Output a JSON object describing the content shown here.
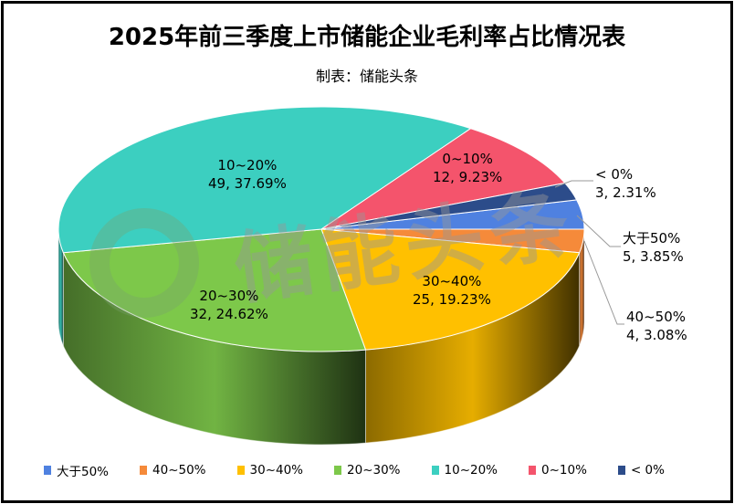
{
  "title": "2025年前三季度上市储能企业毛利率占比情况表",
  "subtitle": "制表：储能头条",
  "watermark": "储能头条",
  "chart_data": {
    "type": "pie",
    "title": "2025年前三季度上市储能企业毛利率占比情况表",
    "subtitle": "制表：储能头条",
    "legend_position": "bottom",
    "slices": [
      {
        "name": "大于50%",
        "value": 5,
        "percent": "3.85%",
        "label": "5, 3.85%",
        "color": "#4F81E0"
      },
      {
        "name": "40~50%",
        "value": 4,
        "percent": "3.08%",
        "label": "4, 3.08%",
        "color": "#F58A3A"
      },
      {
        "name": "30~40%",
        "value": 25,
        "percent": "19.23%",
        "label": "25, 19.23%",
        "color": "#FFC000"
      },
      {
        "name": "20~30%",
        "value": 32,
        "percent": "24.62%",
        "label": "32, 24.62%",
        "color": "#7DC84A"
      },
      {
        "name": "10~20%",
        "value": 49,
        "percent": "37.69%",
        "label": "49, 37.69%",
        "color": "#3CCFC0"
      },
      {
        "name": "0~10%",
        "value": 12,
        "percent": "9.23%",
        "label": "12, 9.23%",
        "color": "#F4546C"
      },
      {
        "name": "< 0%",
        "value": 3,
        "percent": "2.31%",
        "label": "3, 2.31%",
        "color": "#2C4C8A"
      }
    ]
  }
}
